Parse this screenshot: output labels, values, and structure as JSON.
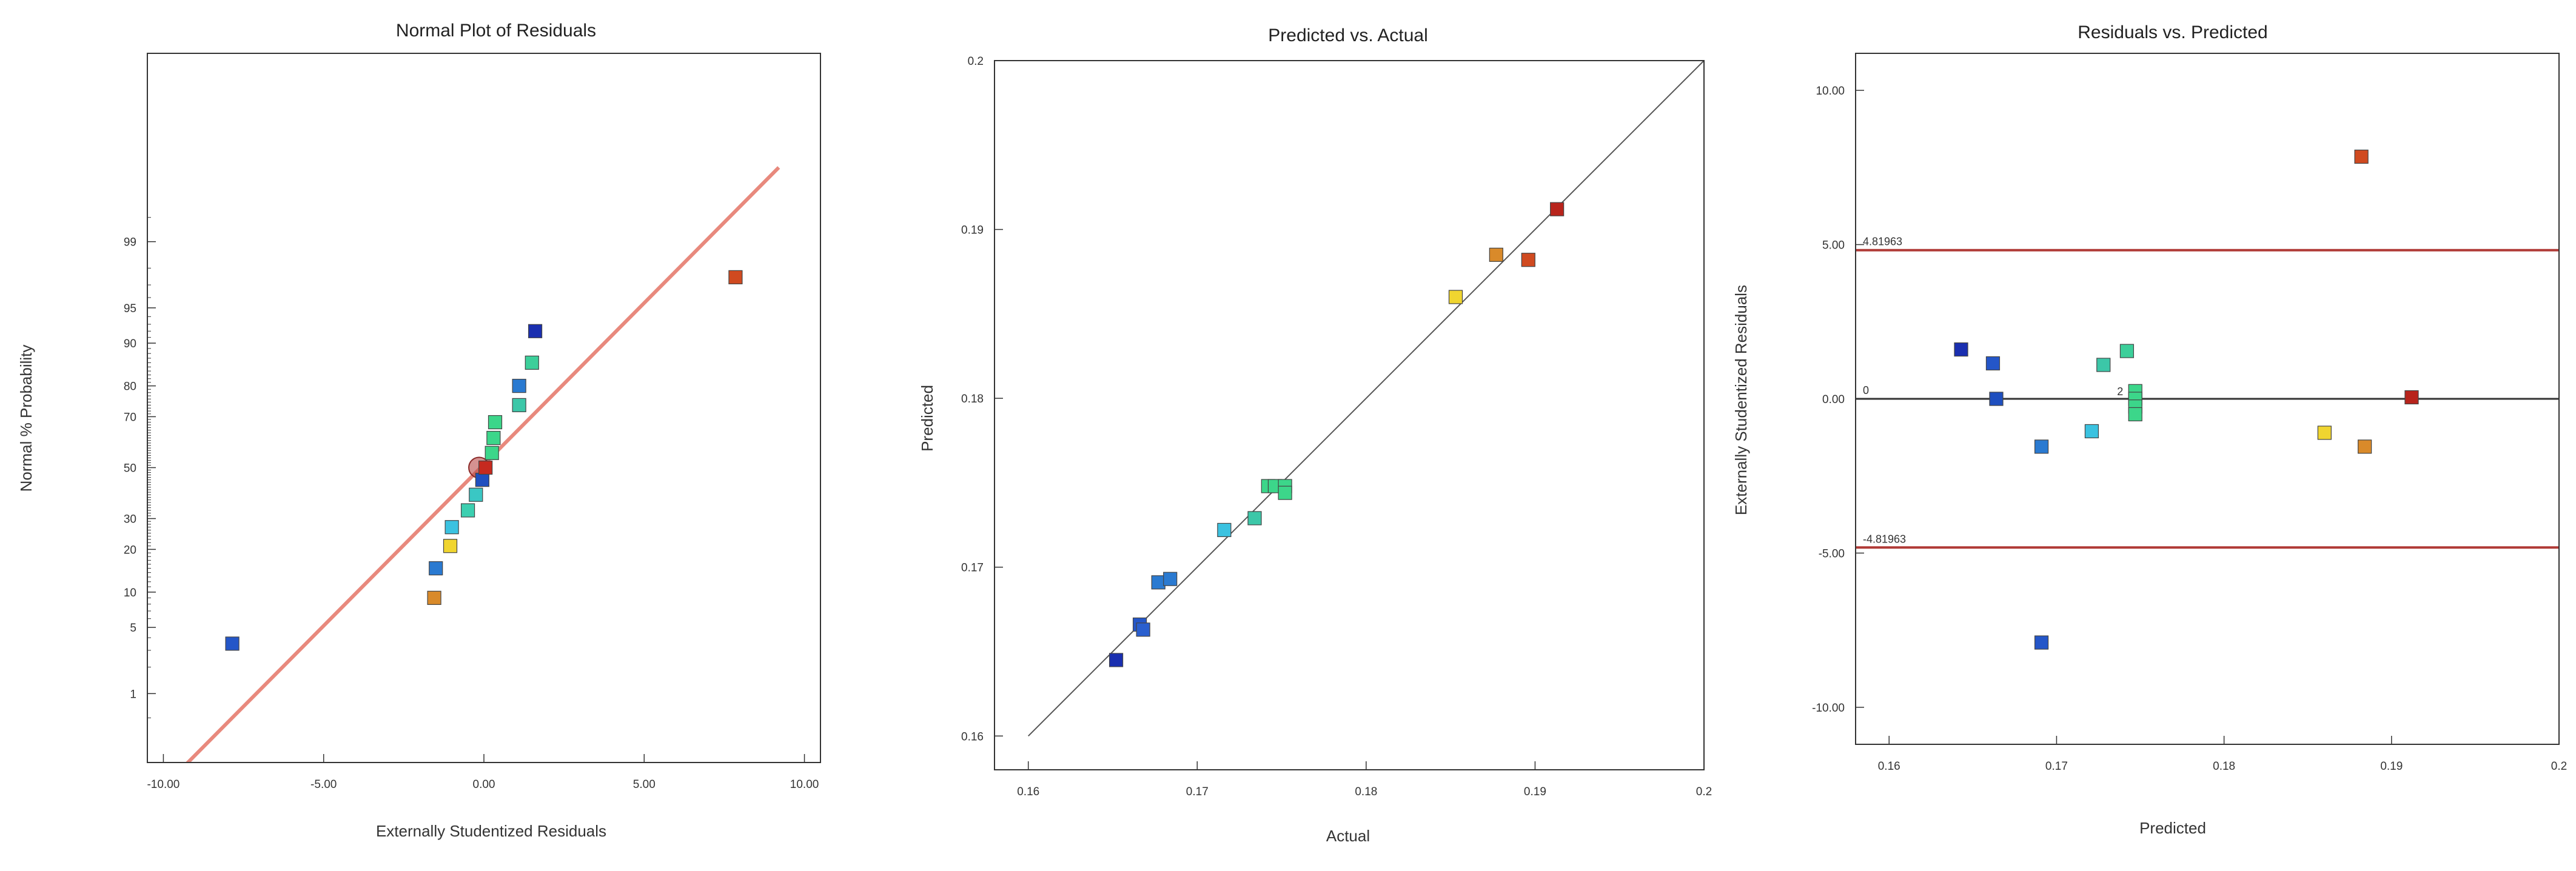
{
  "colors": {
    "refline_normal": "#e8897d",
    "refline_predicted": "#555555",
    "limit_line": "#b03a36",
    "zero_line": "#333333",
    "frame": "#333333"
  },
  "chart_data": [
    {
      "type": "scatter",
      "title": "Normal Plot of Residuals",
      "xlabel": "Externally Studentized Residuals",
      "ylabel": "Normal % Probability",
      "xlim": [
        -10.5,
        10.5
      ],
      "x_ticks": [
        -10,
        -5,
        0,
        5,
        10
      ],
      "x_tick_labels": [
        "-10.00",
        "-5.00",
        "0.00",
        "5.00",
        "10.00"
      ],
      "y_scale": "normal-probability",
      "y_ticks": [
        1,
        5,
        10,
        20,
        30,
        50,
        70,
        80,
        90,
        95,
        99
      ],
      "y_tick_labels": [
        "1",
        "5",
        "10",
        "20",
        "30",
        "50",
        "70",
        "80",
        "90",
        "95",
        "99"
      ],
      "reference_line": {
        "from": [
          -9.4,
          0.1
        ],
        "to": [
          9.2,
          99.9
        ]
      },
      "highlight_point": {
        "x": -0.15,
        "y": 50
      },
      "points": [
        {
          "x": -7.85,
          "y": 3.5,
          "color": "#2456c8"
        },
        {
          "x": -1.55,
          "y": 9,
          "color": "#d98a2a"
        },
        {
          "x": -1.5,
          "y": 15,
          "color": "#2a7ad1"
        },
        {
          "x": -1.05,
          "y": 21,
          "color": "#f0d530"
        },
        {
          "x": -1.0,
          "y": 27,
          "color": "#3bc2e0"
        },
        {
          "x": -0.5,
          "y": 33,
          "color": "#3ccfb0"
        },
        {
          "x": -0.25,
          "y": 39,
          "color": "#3ac7c4"
        },
        {
          "x": -0.05,
          "y": 45,
          "color": "#1f4fbf"
        },
        {
          "x": 0.05,
          "y": 50,
          "color": "#c62a1f"
        },
        {
          "x": 0.25,
          "y": 56,
          "color": "#3cd68a"
        },
        {
          "x": 0.3,
          "y": 62,
          "color": "#3cd68a"
        },
        {
          "x": 0.35,
          "y": 68,
          "color": "#3cd68a"
        },
        {
          "x": 1.1,
          "y": 74,
          "color": "#3cc7a8"
        },
        {
          "x": 1.1,
          "y": 80,
          "color": "#2a7ad1"
        },
        {
          "x": 1.5,
          "y": 86,
          "color": "#3ccf9a"
        },
        {
          "x": 1.6,
          "y": 92,
          "color": "#1a2fb0"
        },
        {
          "x": 7.85,
          "y": 97.5,
          "color": "#d04a20"
        }
      ]
    },
    {
      "type": "scatter",
      "title": "Predicted vs. Actual",
      "xlabel": "Actual",
      "ylabel": "Predicted",
      "xlim": [
        0.158,
        0.2
      ],
      "ylim": [
        0.158,
        0.2
      ],
      "x_ticks": [
        0.16,
        0.17,
        0.18,
        0.19,
        0.2
      ],
      "x_tick_labels": [
        "0.16",
        "0.17",
        "0.18",
        "0.19",
        "0.2"
      ],
      "y_ticks": [
        0.16,
        0.17,
        0.18,
        0.19,
        0.2
      ],
      "y_tick_labels": [
        "0.16",
        "0.17",
        "0.18",
        "0.19",
        "0.2"
      ],
      "reference_line": {
        "from": [
          0.16,
          0.16
        ],
        "to": [
          0.2,
          0.2
        ]
      },
      "points": [
        {
          "x": 0.1652,
          "y": 0.1645,
          "color": "#1a2fb0"
        },
        {
          "x": 0.1666,
          "y": 0.1666,
          "color": "#2456c8"
        },
        {
          "x": 0.1668,
          "y": 0.1663,
          "color": "#2a5fcf"
        },
        {
          "x": 0.1677,
          "y": 0.1691,
          "color": "#2a7ad1"
        },
        {
          "x": 0.1684,
          "y": 0.1693,
          "color": "#2a7ad1"
        },
        {
          "x": 0.1716,
          "y": 0.1722,
          "color": "#3bc2e0"
        },
        {
          "x": 0.1734,
          "y": 0.1729,
          "color": "#3cc7a8"
        },
        {
          "x": 0.1742,
          "y": 0.1748,
          "color": "#3cd68a"
        },
        {
          "x": 0.1746,
          "y": 0.1748,
          "color": "#3cd68a"
        },
        {
          "x": 0.1752,
          "y": 0.1748,
          "color": "#3cd68a"
        },
        {
          "x": 0.1752,
          "y": 0.1744,
          "color": "#3cd68a"
        },
        {
          "x": 0.1853,
          "y": 0.186,
          "color": "#f0d530"
        },
        {
          "x": 0.1877,
          "y": 0.1885,
          "color": "#d98a2a"
        },
        {
          "x": 0.1896,
          "y": 0.1882,
          "color": "#d04a20"
        },
        {
          "x": 0.1913,
          "y": 0.1912,
          "color": "#b8241c"
        }
      ]
    },
    {
      "type": "scatter",
      "title": "Residuals vs. Predicted",
      "xlabel": "Predicted",
      "ylabel": "Externally Studentized Residuals",
      "xlim": [
        0.158,
        0.2
      ],
      "ylim": [
        -11.2,
        11.2
      ],
      "x_ticks": [
        0.16,
        0.17,
        0.18,
        0.19,
        0.2
      ],
      "x_tick_labels": [
        "0.16",
        "0.17",
        "0.18",
        "0.19",
        "0.2"
      ],
      "y_ticks": [
        -10,
        -5,
        0,
        5,
        10
      ],
      "y_tick_labels": [
        "-10.00",
        "-5.00",
        "0.00",
        "5.00",
        "10.00"
      ],
      "limit_lines": [
        {
          "y": 4.81963,
          "label": "4.81963"
        },
        {
          "y": -4.81963,
          "label": "-4.81963"
        }
      ],
      "zero_line": {
        "y": 0,
        "label": "0"
      },
      "point_annotation": {
        "x": 0.1747,
        "y": 0,
        "label": "2"
      },
      "points": [
        {
          "x": 0.1643,
          "y": 1.6,
          "color": "#1a2fb0"
        },
        {
          "x": 0.1662,
          "y": 1.15,
          "color": "#2456c8"
        },
        {
          "x": 0.1664,
          "y": 0.0,
          "color": "#1f4fbf"
        },
        {
          "x": 0.1691,
          "y": -1.55,
          "color": "#2a7ad1"
        },
        {
          "x": 0.1691,
          "y": -7.9,
          "color": "#2456c8"
        },
        {
          "x": 0.1721,
          "y": -1.05,
          "color": "#3bc2e0"
        },
        {
          "x": 0.1728,
          "y": 1.1,
          "color": "#3cc7a8"
        },
        {
          "x": 0.1742,
          "y": 1.55,
          "color": "#3ccf9a"
        },
        {
          "x": 0.1747,
          "y": 0.25,
          "color": "#3cd68a"
        },
        {
          "x": 0.1747,
          "y": 0.0,
          "color": "#3cd68a"
        },
        {
          "x": 0.1747,
          "y": -0.25,
          "color": "#3cd68a"
        },
        {
          "x": 0.1747,
          "y": -0.5,
          "color": "#3cd68a"
        },
        {
          "x": 0.186,
          "y": -1.1,
          "color": "#f0d530"
        },
        {
          "x": 0.1884,
          "y": -1.55,
          "color": "#d98a2a"
        },
        {
          "x": 0.1882,
          "y": 7.85,
          "color": "#d04a20"
        },
        {
          "x": 0.1912,
          "y": 0.05,
          "color": "#b8241c"
        }
      ]
    }
  ]
}
